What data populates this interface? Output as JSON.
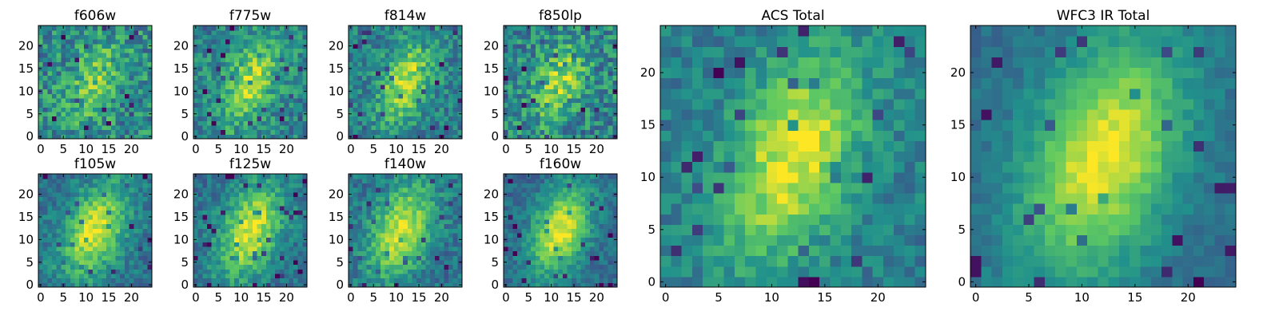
{
  "figure": {
    "description_colormap": "viridis"
  },
  "colormap": {
    "name": "viridis",
    "stops": [
      "#440154",
      "#3b528b",
      "#21918c",
      "#5ec962",
      "#fde725"
    ]
  },
  "chart_data": [
    {
      "type": "heatmap",
      "title": "f606w",
      "grid": [
        25,
        25
      ],
      "xticks": [
        0,
        5,
        10,
        15,
        20
      ],
      "yticks": [
        0,
        5,
        10,
        15,
        20
      ],
      "xlim": [
        0,
        24
      ],
      "ylim": [
        0,
        24
      ],
      "blob": {
        "cx": 12,
        "cy": 12,
        "sx": 3.5,
        "sy": 6.5,
        "angle": -22
      },
      "noise": 0.22,
      "base": 0.48,
      "amp": 0.28,
      "seed": 11
    },
    {
      "type": "heatmap",
      "title": "f775w",
      "grid": [
        25,
        25
      ],
      "xticks": [
        0,
        5,
        10,
        15,
        20
      ],
      "yticks": [
        0,
        5,
        10,
        15,
        20
      ],
      "xlim": [
        0,
        24
      ],
      "ylim": [
        0,
        24
      ],
      "blob": {
        "cx": 12,
        "cy": 12,
        "sx": 3.8,
        "sy": 7.0,
        "angle": -24
      },
      "noise": 0.18,
      "base": 0.45,
      "amp": 0.42,
      "seed": 23
    },
    {
      "type": "heatmap",
      "title": "f814w",
      "grid": [
        25,
        25
      ],
      "xticks": [
        0,
        5,
        10,
        15,
        20
      ],
      "yticks": [
        0,
        5,
        10,
        15,
        20
      ],
      "xlim": [
        0,
        24
      ],
      "ylim": [
        0,
        24
      ],
      "blob": {
        "cx": 12,
        "cy": 12,
        "sx": 3.6,
        "sy": 6.8,
        "angle": -22
      },
      "noise": 0.17,
      "base": 0.42,
      "amp": 0.48,
      "seed": 37
    },
    {
      "type": "heatmap",
      "title": "f850lp",
      "grid": [
        25,
        25
      ],
      "xticks": [
        0,
        5,
        10,
        15,
        20
      ],
      "yticks": [
        0,
        5,
        10,
        15,
        20
      ],
      "xlim": [
        0,
        24
      ],
      "ylim": [
        0,
        24
      ],
      "blob": {
        "cx": 12,
        "cy": 12,
        "sx": 3.5,
        "sy": 6.6,
        "angle": -22
      },
      "noise": 0.22,
      "base": 0.45,
      "amp": 0.38,
      "seed": 41
    },
    {
      "type": "heatmap",
      "title": "f105w",
      "grid": [
        25,
        25
      ],
      "xticks": [
        0,
        5,
        10,
        15,
        20
      ],
      "yticks": [
        0,
        5,
        10,
        15,
        20
      ],
      "xlim": [
        0,
        24
      ],
      "ylim": [
        0,
        24
      ],
      "blob": {
        "cx": 12,
        "cy": 12,
        "sx": 4.2,
        "sy": 7.5,
        "angle": -24
      },
      "noise": 0.13,
      "base": 0.38,
      "amp": 0.58,
      "seed": 53
    },
    {
      "type": "heatmap",
      "title": "f125w",
      "grid": [
        25,
        25
      ],
      "xticks": [
        0,
        5,
        10,
        15,
        20
      ],
      "yticks": [
        0,
        5,
        10,
        15,
        20
      ],
      "xlim": [
        0,
        24
      ],
      "ylim": [
        0,
        24
      ],
      "blob": {
        "cx": 12,
        "cy": 12,
        "sx": 4.2,
        "sy": 7.5,
        "angle": -22
      },
      "noise": 0.13,
      "base": 0.38,
      "amp": 0.58,
      "seed": 67
    },
    {
      "type": "heatmap",
      "title": "f140w",
      "grid": [
        25,
        25
      ],
      "xticks": [
        0,
        5,
        10,
        15,
        20
      ],
      "yticks": [
        0,
        5,
        10,
        15,
        20
      ],
      "xlim": [
        0,
        24
      ],
      "ylim": [
        0,
        24
      ],
      "blob": {
        "cx": 11,
        "cy": 12,
        "sx": 4.3,
        "sy": 7.6,
        "angle": -22
      },
      "noise": 0.14,
      "base": 0.38,
      "amp": 0.56,
      "seed": 79
    },
    {
      "type": "heatmap",
      "title": "f160w",
      "grid": [
        25,
        25
      ],
      "xticks": [
        0,
        5,
        10,
        15,
        20
      ],
      "yticks": [
        0,
        5,
        10,
        15,
        20
      ],
      "xlim": [
        0,
        24
      ],
      "ylim": [
        0,
        24
      ],
      "blob": {
        "cx": 12,
        "cy": 12,
        "sx": 4.0,
        "sy": 7.2,
        "angle": -22
      },
      "noise": 0.11,
      "base": 0.35,
      "amp": 0.62,
      "seed": 83
    },
    {
      "type": "heatmap",
      "title": "ACS Total",
      "grid": [
        25,
        25
      ],
      "xticks": [
        0,
        5,
        10,
        15,
        20
      ],
      "yticks": [
        0,
        5,
        10,
        15,
        20
      ],
      "xlim": [
        0,
        24
      ],
      "ylim": [
        0,
        24
      ],
      "blob": {
        "cx": 12,
        "cy": 12,
        "sx": 3.8,
        "sy": 7.2,
        "angle": -22
      },
      "noise": 0.12,
      "base": 0.42,
      "amp": 0.55,
      "seed": 97
    },
    {
      "type": "heatmap",
      "title": "WFC3 IR Total",
      "grid": [
        25,
        25
      ],
      "xticks": [
        0,
        5,
        10,
        15,
        20
      ],
      "yticks": [
        0,
        5,
        10,
        15,
        20
      ],
      "xlim": [
        0,
        24
      ],
      "ylim": [
        0,
        24
      ],
      "blob": {
        "cx": 12,
        "cy": 12,
        "sx": 4.6,
        "sy": 8.2,
        "angle": -20
      },
      "noise": 0.07,
      "base": 0.36,
      "amp": 0.62,
      "seed": 101
    }
  ]
}
